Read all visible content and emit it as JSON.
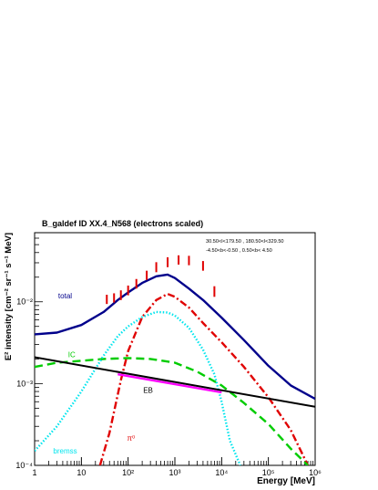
{
  "chart_data": {
    "type": "line",
    "title": "B_galdef ID XX.4_N568 (electrons scaled)",
    "region_line1": "30.50<l<179.50 , 180.50<l<329.50",
    "region_line2": "-4.50<b<-0.50 ,  0.50<b< 4.50",
    "xlabel": "Energy [MeV]",
    "ylabel": "E² intensity [cm⁻² sr⁻¹ s⁻¹ MeV]",
    "xscale": "log",
    "yscale": "log",
    "xlim": [
      1,
      1000000
    ],
    "ylim": [
      0.0001,
      0.07
    ],
    "x_ticks": [
      {
        "value": 1,
        "label": "1"
      },
      {
        "value": 10,
        "label": "10"
      },
      {
        "value": 100,
        "label": "10²"
      },
      {
        "value": 1000,
        "label": "10³"
      },
      {
        "value": 10000,
        "label": "10⁴"
      },
      {
        "value": 100000,
        "label": "10⁵"
      },
      {
        "value": 1000000,
        "label": "10⁶"
      }
    ],
    "y_ticks": [
      {
        "value": 0.0001,
        "label": "10⁻⁴"
      },
      {
        "value": 0.001,
        "label": "10⁻³"
      },
      {
        "value": 0.01,
        "label": "10⁻²"
      }
    ],
    "grid": false,
    "series": [
      {
        "name": "total",
        "color": "#00008b",
        "style": "solid",
        "x": [
          1,
          3,
          10,
          30,
          60,
          100,
          200,
          400,
          700,
          1000,
          2000,
          4000,
          10000,
          30000,
          100000,
          300000,
          1000000
        ],
        "y": [
          0.004,
          0.0042,
          0.0052,
          0.0075,
          0.0105,
          0.013,
          0.017,
          0.0205,
          0.0215,
          0.0195,
          0.0145,
          0.0105,
          0.0064,
          0.0034,
          0.00165,
          0.00095,
          0.00065
        ]
      },
      {
        "name": "π⁰",
        "color": "#e00000",
        "style": "dashdot",
        "x": [
          25,
          40,
          70,
          100,
          200,
          400,
          700,
          1000,
          2000,
          4000,
          10000,
          30000,
          100000,
          300000,
          700000
        ],
        "y": [
          0.0001,
          0.00025,
          0.0011,
          0.0025,
          0.0065,
          0.0105,
          0.0125,
          0.0115,
          0.0085,
          0.0055,
          0.0032,
          0.0016,
          0.00068,
          0.00027,
          0.0001
        ]
      },
      {
        "name": "IC",
        "color": "#00cc00",
        "style": "dashed",
        "x": [
          1,
          3,
          10,
          30,
          100,
          300,
          1000,
          3000,
          10000,
          30000,
          100000,
          300000,
          700000
        ],
        "y": [
          0.0016,
          0.0018,
          0.0019,
          0.002,
          0.00205,
          0.002,
          0.0018,
          0.0014,
          0.00095,
          0.00058,
          0.00032,
          0.00016,
          0.0001
        ]
      },
      {
        "name": "bremss",
        "color": "#00e5ee",
        "style": "dotted",
        "x": [
          1,
          3,
          10,
          30,
          60,
          100,
          200,
          400,
          700,
          1000,
          2000,
          4000,
          7000,
          10000,
          15000,
          25000
        ],
        "y": [
          0.00015,
          0.0003,
          0.0008,
          0.0022,
          0.0038,
          0.005,
          0.0065,
          0.0075,
          0.0074,
          0.0068,
          0.0048,
          0.0026,
          0.0013,
          0.0006,
          0.0002,
          0.0001
        ]
      },
      {
        "name": "EB",
        "color": "#000000",
        "style": "solid",
        "x": [
          1,
          1000000
        ],
        "y": [
          0.0021,
          0.00052
        ]
      },
      {
        "name": "",
        "color": "#ff00ff",
        "style": "solid",
        "x": [
          60,
          10000
        ],
        "y": [
          0.0013,
          0.00078
        ]
      }
    ],
    "data_points": {
      "color": "#e00000",
      "x": [
        35,
        50,
        70,
        100,
        150,
        250,
        400,
        700,
        1200,
        2000,
        4000,
        7000
      ],
      "y_low": [
        0.0094,
        0.0098,
        0.0105,
        0.012,
        0.0145,
        0.0185,
        0.023,
        0.0265,
        0.0285,
        0.028,
        0.024,
        0.0115
      ],
      "y_high": [
        0.0122,
        0.0127,
        0.0138,
        0.0158,
        0.019,
        0.024,
        0.0305,
        0.035,
        0.037,
        0.0365,
        0.0315,
        0.0155
      ]
    },
    "labels": [
      {
        "text": "total",
        "color": "#00008b",
        "x": 3.2,
        "y": 0.011
      },
      {
        "text": "IC",
        "color": "#00cc00",
        "x": 5.2,
        "y": 0.0021
      },
      {
        "text": "EB",
        "color": "#000000",
        "x": 210,
        "y": 0.00077
      },
      {
        "text": "bremss",
        "color": "#00e5ee",
        "x": 2.5,
        "y": 0.00014
      },
      {
        "text": "π⁰",
        "color": "#e00000",
        "x": 95,
        "y": 0.0002
      }
    ]
  }
}
